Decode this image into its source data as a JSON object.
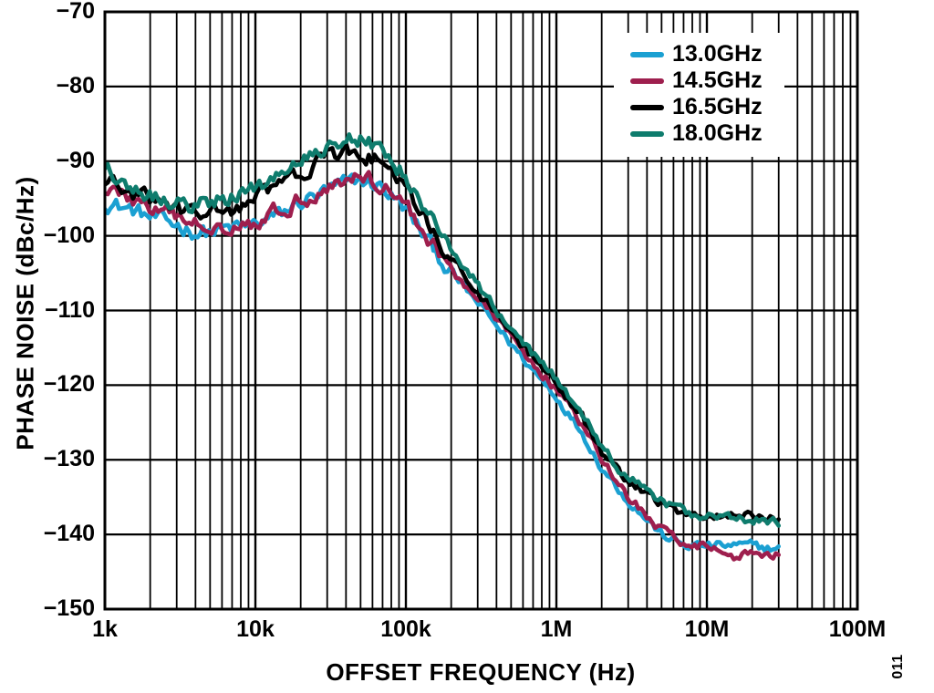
{
  "figure_number": "011",
  "chart_data": {
    "type": "line",
    "title": "",
    "xlabel": "OFFSET FREQUENCY (Hz)",
    "ylabel": "PHASE NOISE (dBc/Hz)",
    "x_scale": "log",
    "xlim": [
      1000,
      100000000
    ],
    "ylim": [
      -150,
      -70
    ],
    "grid": {
      "x_minor_decades": true,
      "y_major_step_db": 10
    },
    "legend_position": "top-right-inside",
    "x_ticks": [
      {
        "label": "1k",
        "value": 1000
      },
      {
        "label": "10k",
        "value": 10000
      },
      {
        "label": "100k",
        "value": 100000
      },
      {
        "label": "1M",
        "value": 1000000
      },
      {
        "label": "10M",
        "value": 10000000
      },
      {
        "label": "100M",
        "value": 100000000
      }
    ],
    "y_ticks": [
      {
        "label": "−70",
        "value": -70
      },
      {
        "label": "−80",
        "value": -80
      },
      {
        "label": "−90",
        "value": -90
      },
      {
        "label": "−100",
        "value": -100
      },
      {
        "label": "−110",
        "value": -110
      },
      {
        "label": "−120",
        "value": -120
      },
      {
        "label": "−130",
        "value": -130
      },
      {
        "label": "−140",
        "value": -140
      },
      {
        "label": "−150",
        "value": -150
      }
    ],
    "x_hz": [
      1000,
      1500,
      2000,
      3000,
      4000,
      5000,
      7000,
      10000,
      15000,
      20000,
      30000,
      40000,
      50000,
      70000,
      100000,
      150000,
      200000,
      300000,
      400000,
      500000,
      700000,
      1000000,
      1500000,
      2000000,
      3000000,
      4000000,
      5000000,
      7000000,
      10000000,
      15000000,
      20000000,
      30000000
    ],
    "series": [
      {
        "name": "13.0GHz",
        "color": "#1BA0D2",
        "values": [
          -95.5,
          -96.5,
          -97.5,
          -98.5,
          -99.5,
          -99.5,
          -99,
          -98.5,
          -97,
          -95.5,
          -94,
          -93,
          -92.5,
          -93.5,
          -96.5,
          -101.5,
          -105,
          -109,
          -112,
          -114.5,
          -118,
          -121.5,
          -126.5,
          -131,
          -135.5,
          -138,
          -140,
          -141.5,
          -141.5,
          -141.5,
          -141.5,
          -142
        ]
      },
      {
        "name": "14.5GHz",
        "color": "#9E1F4E",
        "values": [
          -93.5,
          -95,
          -96.5,
          -97.5,
          -98.5,
          -98.5,
          -98.5,
          -98,
          -96.5,
          -95,
          -93.5,
          -92.5,
          -92,
          -93,
          -96,
          -101,
          -104.5,
          -108.5,
          -111,
          -113.5,
          -117,
          -120.5,
          -125.5,
          -130,
          -135,
          -137.5,
          -139.5,
          -141,
          -141.5,
          -143,
          -142.5,
          -142.5
        ]
      },
      {
        "name": "16.5GHz",
        "color": "#000000",
        "values": [
          -92.5,
          -94.5,
          -95,
          -96.5,
          -97,
          -97,
          -96.5,
          -95,
          -93,
          -91.5,
          -89.5,
          -89,
          -89,
          -90,
          -94,
          -99.5,
          -103,
          -107.5,
          -110.5,
          -113,
          -116.5,
          -120,
          -124.5,
          -129,
          -133,
          -134.5,
          -136,
          -137,
          -137.5,
          -137.5,
          -137.5,
          -138
        ]
      },
      {
        "name": "18.0GHz",
        "color": "#0E7C6D",
        "values": [
          -90.5,
          -93.5,
          -94.5,
          -95.5,
          -96,
          -95.5,
          -95,
          -93.5,
          -91.5,
          -90,
          -88,
          -86.5,
          -87,
          -88.5,
          -92,
          -98,
          -101.5,
          -106.5,
          -110,
          -112.5,
          -116,
          -119,
          -124,
          -128.5,
          -132.5,
          -134,
          -135.5,
          -137,
          -137.5,
          -138,
          -138,
          -138.5
        ]
      }
    ]
  }
}
